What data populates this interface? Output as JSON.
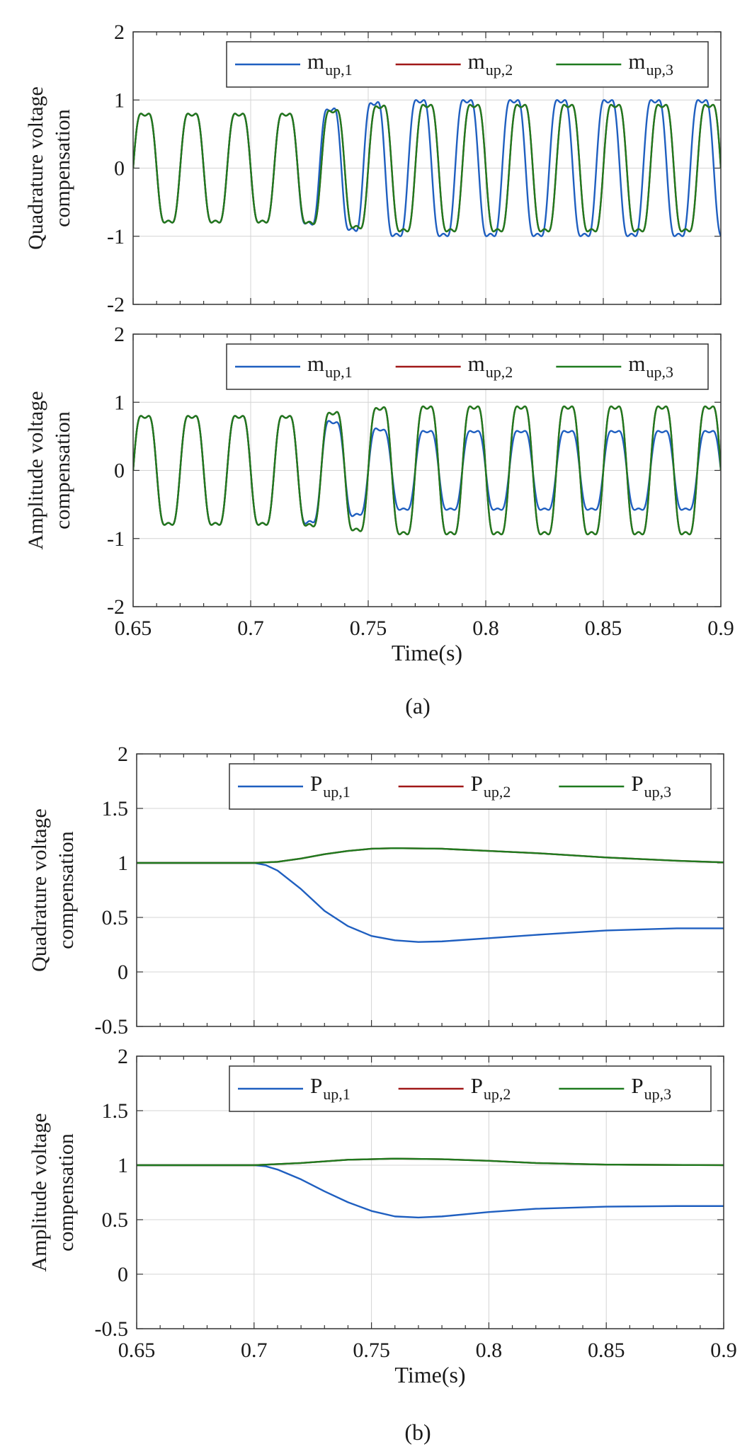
{
  "figure": {
    "caption_a": "(a)",
    "caption_b": "(b)"
  },
  "colors": {
    "series1": "#1f5fc0",
    "series2": "#a01818",
    "series3": "#1f7a1f",
    "grid": "#d4d4d4",
    "axis": "#333333"
  },
  "chart_data": [
    {
      "type": "line",
      "panel": "a-top",
      "ylabel_lines": [
        "Quadrature voltage",
        "compensation"
      ],
      "xlabel": "",
      "xlim": [
        0.65,
        0.9
      ],
      "ylim": [
        -2,
        2
      ],
      "xticks": [
        0.65,
        0.7,
        0.75,
        0.8,
        0.85,
        0.9
      ],
      "xtick_labels": [],
      "yticks": [
        -2,
        -1,
        0,
        1,
        2
      ],
      "ytick_labels": [
        "-2",
        "-1",
        "0",
        "1",
        "2"
      ],
      "legend": "top-right",
      "grid": true,
      "series": [
        {
          "name": "m",
          "sub": "up,1",
          "color": "#1f5fc0",
          "waveform": {
            "frequency_hz": 50,
            "pre_fault_amplitude": 0.8,
            "post_fault_amplitude": 1.0,
            "fault_start": 0.72,
            "phase_shift_cycles": 0.15
          }
        },
        {
          "name": "m",
          "sub": "up,2",
          "color": "#a01818",
          "waveform": {
            "frequency_hz": 50,
            "pre_fault_amplitude": 0.8,
            "post_fault_amplitude": 0.93,
            "fault_start": 0.72,
            "phase_shift_cycles": 0
          }
        },
        {
          "name": "m",
          "sub": "up,3",
          "color": "#1f7a1f",
          "waveform": {
            "frequency_hz": 50,
            "pre_fault_amplitude": 0.8,
            "post_fault_amplitude": 0.93,
            "fault_start": 0.72,
            "phase_shift_cycles": 0
          }
        }
      ]
    },
    {
      "type": "line",
      "panel": "a-bottom",
      "ylabel_lines": [
        "Amplitude voltage",
        "compensation"
      ],
      "xlabel": "Time(s)",
      "xlim": [
        0.65,
        0.9
      ],
      "ylim": [
        -2,
        2
      ],
      "xticks": [
        0.65,
        0.7,
        0.75,
        0.8,
        0.85,
        0.9
      ],
      "xtick_labels": [
        "0.65",
        "0.7",
        "0.75",
        "0.8",
        "0.85",
        "0.9"
      ],
      "yticks": [
        -2,
        -1,
        0,
        1,
        2
      ],
      "ytick_labels": [
        "-2",
        "-1",
        "0",
        "1",
        "2"
      ],
      "legend": "top-right",
      "grid": true,
      "series": [
        {
          "name": "m",
          "sub": "up,1",
          "color": "#1f5fc0",
          "waveform": {
            "frequency_hz": 50,
            "pre_fault_amplitude": 0.8,
            "post_fault_amplitude": 0.58,
            "fault_start": 0.72,
            "phase_shift_cycles": 0
          }
        },
        {
          "name": "m",
          "sub": "up,2",
          "color": "#a01818",
          "waveform": {
            "frequency_hz": 50,
            "pre_fault_amplitude": 0.8,
            "post_fault_amplitude": 0.94,
            "fault_start": 0.72,
            "phase_shift_cycles": 0
          }
        },
        {
          "name": "m",
          "sub": "up,3",
          "color": "#1f7a1f",
          "waveform": {
            "frequency_hz": 50,
            "pre_fault_amplitude": 0.8,
            "post_fault_amplitude": 0.94,
            "fault_start": 0.72,
            "phase_shift_cycles": 0
          }
        }
      ]
    },
    {
      "type": "line",
      "panel": "b-top",
      "ylabel_lines": [
        "Quadrature voltage",
        "compensation"
      ],
      "xlabel": "",
      "xlim": [
        0.65,
        0.9
      ],
      "ylim": [
        -0.5,
        2
      ],
      "xticks": [
        0.65,
        0.7,
        0.75,
        0.8,
        0.85,
        0.9
      ],
      "xtick_labels": [],
      "yticks": [
        -0.5,
        0,
        0.5,
        1,
        1.5,
        2
      ],
      "ytick_labels": [
        "-0.5",
        "0",
        "0.5",
        "1",
        "1.5",
        "2"
      ],
      "legend": "top-right",
      "grid": true,
      "series": [
        {
          "name": "P",
          "sub": "up,1",
          "color": "#1f5fc0",
          "x": [
            0.65,
            0.7,
            0.705,
            0.71,
            0.72,
            0.73,
            0.74,
            0.75,
            0.76,
            0.77,
            0.78,
            0.8,
            0.82,
            0.85,
            0.88,
            0.9
          ],
          "y": [
            1.0,
            1.0,
            0.98,
            0.93,
            0.76,
            0.56,
            0.42,
            0.33,
            0.29,
            0.275,
            0.28,
            0.31,
            0.34,
            0.38,
            0.4,
            0.4
          ]
        },
        {
          "name": "P",
          "sub": "up,2",
          "color": "#a01818",
          "x": [
            0.65,
            0.7,
            0.71,
            0.72,
            0.73,
            0.74,
            0.75,
            0.76,
            0.78,
            0.8,
            0.82,
            0.85,
            0.88,
            0.9
          ],
          "y": [
            1.0,
            1.0,
            1.01,
            1.04,
            1.08,
            1.11,
            1.13,
            1.135,
            1.13,
            1.11,
            1.09,
            1.05,
            1.02,
            1.005
          ]
        },
        {
          "name": "P",
          "sub": "up,3",
          "color": "#1f7a1f",
          "x": [
            0.65,
            0.7,
            0.71,
            0.72,
            0.73,
            0.74,
            0.75,
            0.76,
            0.78,
            0.8,
            0.82,
            0.85,
            0.88,
            0.9
          ],
          "y": [
            1.0,
            1.0,
            1.01,
            1.04,
            1.08,
            1.11,
            1.13,
            1.135,
            1.13,
            1.11,
            1.09,
            1.05,
            1.02,
            1.005
          ]
        }
      ]
    },
    {
      "type": "line",
      "panel": "b-bottom",
      "ylabel_lines": [
        "Amplitude voltage",
        "compensation"
      ],
      "xlabel": "Time(s)",
      "xlim": [
        0.65,
        0.9
      ],
      "ylim": [
        -0.5,
        2
      ],
      "xticks": [
        0.65,
        0.7,
        0.75,
        0.8,
        0.85,
        0.9
      ],
      "xtick_labels": [
        "0.65",
        "0.7",
        "0.75",
        "0.8",
        "0.85",
        "0.9"
      ],
      "yticks": [
        -0.5,
        0,
        0.5,
        1,
        1.5,
        2
      ],
      "ytick_labels": [
        "-0.5",
        "0",
        "0.5",
        "1",
        "1.5",
        "2"
      ],
      "legend": "top-right",
      "grid": true,
      "series": [
        {
          "name": "P",
          "sub": "up,1",
          "color": "#1f5fc0",
          "x": [
            0.65,
            0.7,
            0.705,
            0.71,
            0.72,
            0.73,
            0.74,
            0.75,
            0.76,
            0.77,
            0.78,
            0.8,
            0.82,
            0.85,
            0.88,
            0.9
          ],
          "y": [
            1.0,
            1.0,
            0.99,
            0.96,
            0.87,
            0.76,
            0.66,
            0.58,
            0.53,
            0.52,
            0.53,
            0.57,
            0.6,
            0.62,
            0.625,
            0.625
          ]
        },
        {
          "name": "P",
          "sub": "up,2",
          "color": "#a01818",
          "x": [
            0.65,
            0.7,
            0.71,
            0.72,
            0.74,
            0.76,
            0.78,
            0.8,
            0.82,
            0.85,
            0.9
          ],
          "y": [
            1.0,
            1.0,
            1.01,
            1.02,
            1.05,
            1.06,
            1.055,
            1.04,
            1.02,
            1.005,
            1.0
          ]
        },
        {
          "name": "P",
          "sub": "up,3",
          "color": "#1f7a1f",
          "x": [
            0.65,
            0.7,
            0.71,
            0.72,
            0.74,
            0.76,
            0.78,
            0.8,
            0.82,
            0.85,
            0.9
          ],
          "y": [
            1.0,
            1.0,
            1.01,
            1.02,
            1.05,
            1.06,
            1.055,
            1.04,
            1.02,
            1.005,
            1.0
          ]
        }
      ]
    }
  ]
}
